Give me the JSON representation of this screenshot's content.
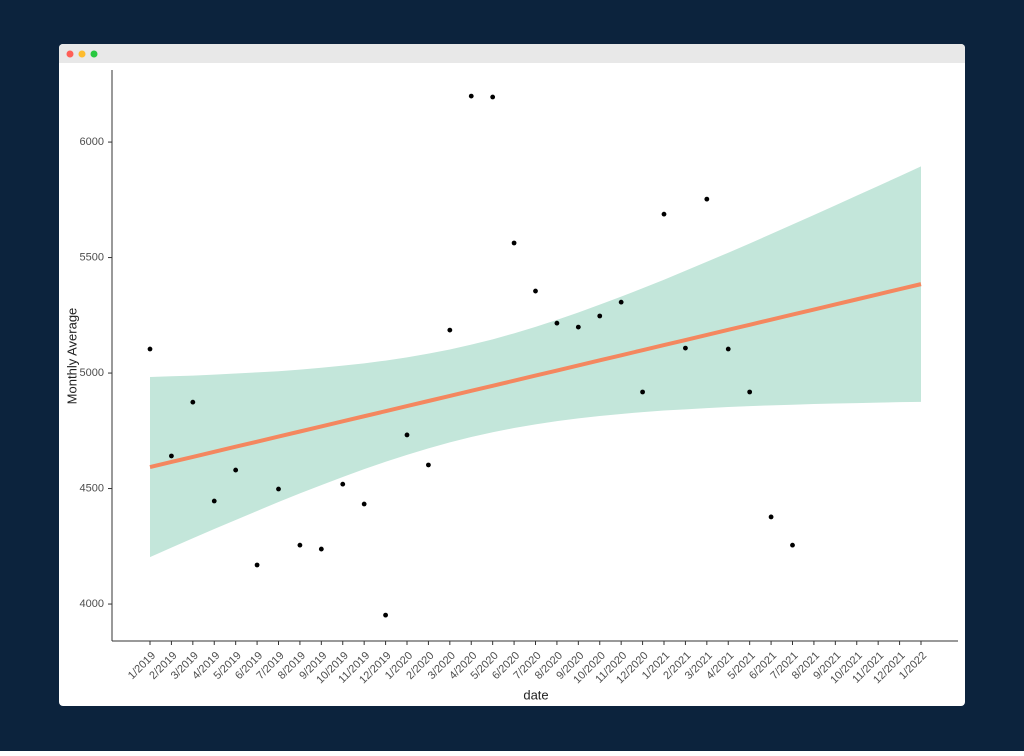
{
  "chart_data": {
    "type": "scatter",
    "x_label": "date",
    "y_label": "Monthly Average",
    "categories": [
      "1/2019",
      "2/2019",
      "3/2019",
      "4/2019",
      "5/2019",
      "6/2019",
      "7/2019",
      "8/2019",
      "9/2019",
      "10/2019",
      "11/2019",
      "12/2019",
      "1/2020",
      "2/2020",
      "3/2020",
      "4/2020",
      "5/2020",
      "6/2020",
      "7/2020",
      "8/2020",
      "9/2020",
      "10/2020",
      "11/2020",
      "12/2020",
      "1/2021",
      "2/2021",
      "3/2021",
      "4/2021",
      "5/2021",
      "6/2021",
      "7/2021",
      "8/2021",
      "9/2021",
      "10/2021",
      "11/2021",
      "12/2021",
      "1/2022"
    ],
    "values": [
      5104,
      4641,
      4874,
      4446,
      4580,
      4169,
      4498,
      4255,
      4238,
      4519,
      4433,
      3952,
      4732,
      4602,
      5186,
      6199,
      6195,
      5563,
      5355,
      5216,
      5199,
      5247,
      5307,
      4918,
      5688,
      5108,
      5753,
      5104,
      4918,
      4377,
      4255,
      null,
      null,
      null,
      null,
      null,
      null
    ],
    "color": "#000000",
    "fit": {
      "color": "#f4875f",
      "values": [
        4593,
        4615,
        4637,
        4659,
        4681,
        4703,
        4725,
        4747,
        4769,
        4791,
        4813,
        4835,
        4857,
        4879,
        4901,
        4923,
        4945,
        4967,
        4989,
        5011,
        5033,
        5055,
        5077,
        5099,
        5121,
        5143,
        5165,
        5187,
        5209,
        5231,
        5253,
        5275,
        5297,
        5319,
        5341,
        5363,
        5385
      ]
    },
    "band": {
      "color": "#c3e6da",
      "lower": [
        4203,
        4244,
        4285,
        4325,
        4364,
        4403,
        4442,
        4479,
        4515,
        4550,
        4584,
        4616,
        4646,
        4674,
        4700,
        4723,
        4744,
        4762,
        4778,
        4792,
        4804,
        4814,
        4823,
        4831,
        4838,
        4843,
        4848,
        4853,
        4857,
        4860,
        4863,
        4866,
        4868,
        4870,
        4872,
        4874,
        4875
      ],
      "upper": [
        4983,
        4986,
        4989,
        4993,
        4998,
        5003,
        5008,
        5015,
        5023,
        5032,
        5042,
        5054,
        5068,
        5084,
        5102,
        5123,
        5146,
        5172,
        5200,
        5230,
        5262,
        5296,
        5331,
        5367,
        5404,
        5443,
        5482,
        5521,
        5561,
        5602,
        5643,
        5684,
        5726,
        5768,
        5810,
        5852,
        5895
      ]
    },
    "ylim": [
      3840,
      6312
    ],
    "yticks": [
      4000,
      4500,
      5000,
      5500,
      6000
    ],
    "grid": false
  }
}
